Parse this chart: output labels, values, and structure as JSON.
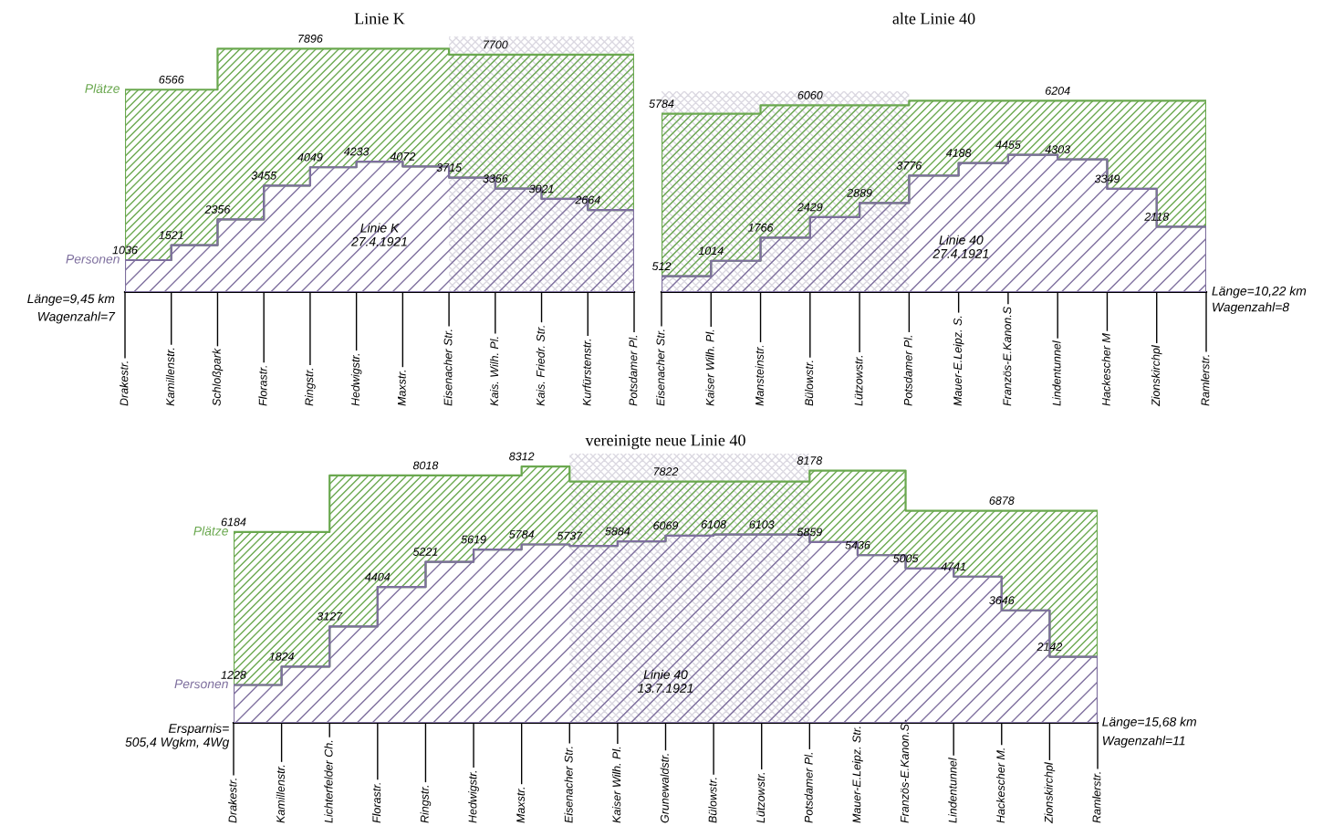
{
  "chart_data": [
    {
      "type": "area",
      "title": "Linie K",
      "tick_labels": "x",
      "categories": [
        "Drakestr.",
        "Kamillenstr.",
        "Schloßpark",
        "Florastr.",
        "Ringstr.",
        "Hedwigstr.",
        "Maxstr.",
        "Eisenacher Str.",
        "Kais. Wilh. Pl.",
        "Kais. Friedr. Str.",
        "Kurfürstenstr.",
        "Potsdamer Pl."
      ],
      "series": [
        {
          "name": "Plätze",
          "color": "#6aa84f",
          "values": [
            6566,
            6566,
            7896,
            7896,
            7896,
            7896,
            7896,
            7700,
            7700,
            7700,
            7700,
            7700
          ],
          "value_labels": [
            null,
            "6566",
            null,
            null,
            "7896",
            null,
            null,
            null,
            "7700",
            null,
            null,
            null
          ]
        },
        {
          "name": "Personen",
          "color": "#7e6f9e",
          "values": [
            1036,
            1521,
            2356,
            3455,
            4049,
            4233,
            4072,
            3715,
            3356,
            3021,
            2664,
            2664
          ],
          "value_labels": [
            "1036",
            "1521",
            "2356",
            "3455",
            "4049",
            "4233",
            "4072",
            "3715",
            "3356",
            "3021",
            "2664",
            null
          ]
        }
      ],
      "bands": [
        {
          "axis": "x",
          "from": "Eisenacher Str.",
          "to": "Potsdamer Pl.",
          "color": "#4b3f6b"
        }
      ],
      "annotations": [
        "Linie K\n27.4.1921",
        "Länge=9,45 km",
        "Wagenzahl=7"
      ]
    },
    {
      "type": "area",
      "title": "alte Linie 40",
      "tick_labels": "x",
      "categories": [
        "Eisenacher Str.",
        "Kaiser Wilh. Pl.",
        "Mansteinstr.",
        "Bülowstr.",
        "Lützowstr.",
        "Potsdamer Pl.",
        "Mauer-E.Leipz. S.",
        "Französ-E.Kanon.S",
        "Lindentunnel",
        "Hackescher M",
        "Zionskirchpl",
        "Ramlerstr."
      ],
      "series": [
        {
          "color": "#6aa84f",
          "values": [
            5784,
            5784,
            6060,
            6060,
            6060,
            6204,
            6204,
            6204,
            6204,
            6204,
            6204,
            6204
          ],
          "value_labels": [
            "5784",
            null,
            null,
            "6060",
            null,
            null,
            null,
            null,
            "6204",
            null,
            null,
            null
          ]
        },
        {
          "color": "#7e6f9e",
          "values": [
            512,
            1014,
            1766,
            2429,
            2889,
            3776,
            4188,
            4455,
            4303,
            3349,
            2118,
            2118
          ],
          "value_labels": [
            "512",
            "1014",
            "1766",
            "2429",
            "2889",
            "3776",
            "4188",
            "4455",
            "4303",
            "3349",
            "2118",
            null
          ]
        }
      ],
      "bands": [
        {
          "axis": "x",
          "from": "Eisenacher Str.",
          "to": "Potsdamer Pl.",
          "color": "#4b3f6b"
        }
      ],
      "annotations": [
        "Linie 40\n27.4.1921",
        "Länge=10,22 km",
        "Wagenzahl=8"
      ]
    },
    {
      "type": "area",
      "title": "vereinigte neue Linie 40",
      "tick_labels": "x",
      "categories": [
        "Drakestr.",
        "Kamillenstr.",
        "Lichterfelder Ch.",
        "Florastr.",
        "Ringstr.",
        "Hedwigstr.",
        "Maxstr.",
        "Eisenacher Str.",
        "Kaiser Wilh. Pl.",
        "Grunewaldstr.",
        "Bülowstr.",
        "Lützowstr.",
        "Potsdamer Pl.",
        "Mauer-E.Leipz. Str.",
        "Französ-E.Kanon.S",
        "Lindentunnel",
        "Hackescher M.",
        "Zionskirchpl",
        "Ramlerstr."
      ],
      "series": [
        {
          "name": "Plätze",
          "color": "#6aa84f",
          "values": [
            6184,
            6184,
            8018,
            8018,
            8018,
            8018,
            8312,
            7822,
            7822,
            7822,
            7822,
            7822,
            8178,
            8178,
            6878,
            6878,
            6878,
            6878,
            6878
          ],
          "value_labels": [
            "6184",
            null,
            null,
            null,
            "8018",
            null,
            "8312",
            null,
            null,
            "7822",
            null,
            null,
            "8178",
            null,
            null,
            null,
            "6878",
            null,
            null
          ]
        },
        {
          "name": "Personen",
          "color": "#7e6f9e",
          "values": [
            1228,
            1824,
            3127,
            4404,
            5221,
            5619,
            5784,
            5737,
            5884,
            6069,
            6108,
            6103,
            5859,
            5436,
            5005,
            4741,
            3646,
            2142,
            2142
          ],
          "value_labels": [
            "1228",
            "1824",
            "3127",
            "4404",
            "5221",
            "5619",
            "5784",
            "5737",
            "5884",
            "6069",
            "6108",
            "6103",
            "5859",
            "5436",
            "5005",
            "4741",
            "3646",
            "2142",
            null
          ]
        }
      ],
      "bands": [
        {
          "axis": "x",
          "from": "Eisenacher Str.",
          "to": "Potsdamer Pl.",
          "color": "#4b3f6b"
        }
      ],
      "annotations": [
        "Linie 40\n13.7.1921",
        "Ersparnis=\n505,4 Wgkm, 4Wg",
        "Länge=15,68 km",
        "Wagenzahl=11"
      ]
    }
  ]
}
